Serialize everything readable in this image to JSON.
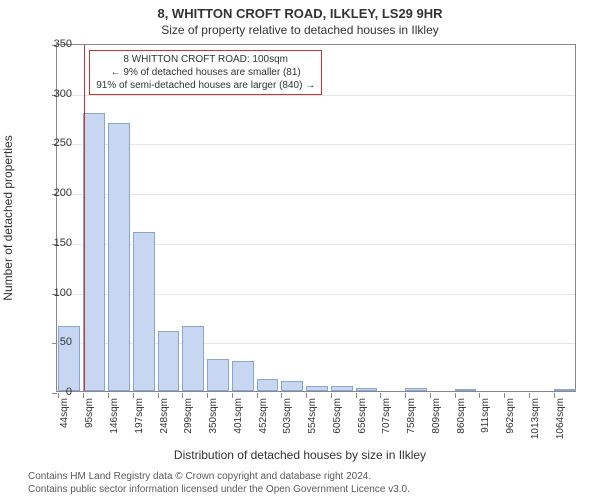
{
  "title": "8, WHITTON CROFT ROAD, ILKLEY, LS29 9HR",
  "subtitle": "Size of property relative to detached houses in Ilkley",
  "ylabel": "Number of detached properties",
  "xlabel": "Distribution of detached houses by size in Ilkley",
  "footer": {
    "line1": "Contains HM Land Registry data © Crown copyright and database right 2024.",
    "line2": "Contains public sector information licensed under the Open Government Licence v3.0."
  },
  "annotation": {
    "line1": "8 WHITTON CROFT ROAD: 100sqm",
    "line2": "← 9% of detached houses are smaller (81)",
    "line3": "91% of semi-detached houses are larger (840) →",
    "border_color": "#cc3333"
  },
  "chart": {
    "type": "histogram",
    "background_color": "#ffffff",
    "grid_color": "#e6e6e6",
    "axis_color": "#888888",
    "ylim": [
      0,
      350
    ],
    "ytick_step": 50,
    "bar_fill": "#c7d7f2",
    "bar_border": "#8aa5cf",
    "marker_line_color": "#cc3333",
    "marker_x": 100,
    "x_start": 44,
    "x_step": 51,
    "x_unit": "sqm",
    "x_tick_count": 21,
    "title_fontsize": 13,
    "subtitle_fontsize": 12,
    "label_fontsize": 12,
    "tick_fontsize": 11,
    "xtick_fontsize": 10,
    "annotation_fontsize": 10,
    "values": [
      65,
      280,
      270,
      160,
      60,
      65,
      32,
      30,
      12,
      10,
      5,
      5,
      3,
      0,
      3,
      0,
      2,
      0,
      0,
      0,
      1
    ]
  }
}
